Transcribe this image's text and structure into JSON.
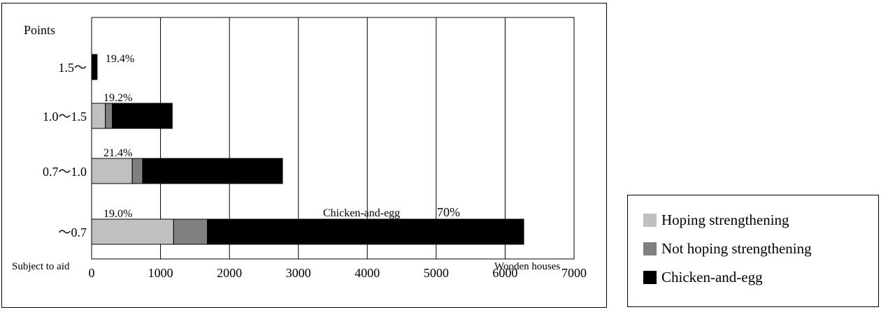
{
  "chart_data": {
    "type": "bar",
    "orientation": "horizontal",
    "stacked": true,
    "title": "",
    "y_axis_title": "Points",
    "x_axis_left_label": "Subject  to  aid",
    "x_axis_right_label": "Wooden  houses",
    "categories": [
      "1.5〜",
      "1.0〜1.5",
      "0.7〜1.0",
      "〜0.7"
    ],
    "series": [
      {
        "name": "Hoping strengthening",
        "color": "#c0c0c0",
        "values": [
          0,
          200,
          590,
          1190
        ]
      },
      {
        "name": "Not hoping strengthening",
        "color": "#808080",
        "values": [
          0,
          100,
          150,
          490
        ]
      },
      {
        "name": "Chicken-and-egg",
        "color": "#000000",
        "values": [
          80,
          870,
          2030,
          4590
        ]
      }
    ],
    "bar_labels": [
      "19.4%",
      "19.2%",
      "21.4%",
      "19.0%"
    ],
    "annotation": {
      "text": "Chicken-and-egg",
      "value_text": "70%"
    },
    "x_ticks": [
      "0",
      "1000",
      "2000",
      "3000",
      "4000",
      "5000",
      "6000",
      "7000"
    ],
    "xlim": [
      0,
      7000
    ],
    "grid": "vertical",
    "legend_position": "right"
  }
}
